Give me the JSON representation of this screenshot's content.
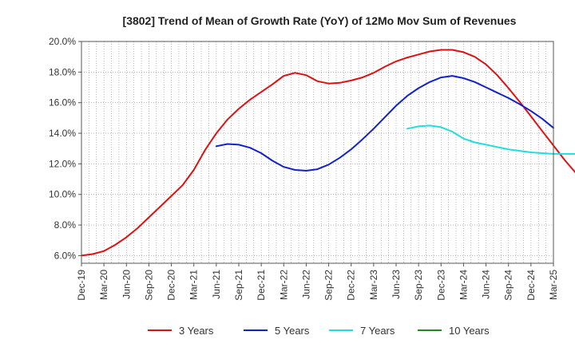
{
  "chart_data": {
    "type": "line",
    "title": "[3802]  Trend of Mean of Growth Rate (YoY) of 12Mo Mov Sum of Revenues",
    "xlabel": "",
    "ylabel": "",
    "ylim": [
      5.5,
      20.0
    ],
    "y_ticks": [
      6.0,
      8.0,
      10.0,
      12.0,
      14.0,
      16.0,
      18.0,
      20.0
    ],
    "y_tick_labels": [
      "6.0%",
      "8.0%",
      "10.0%",
      "12.0%",
      "14.0%",
      "16.0%",
      "18.0%",
      "20.0%"
    ],
    "x_ticks": [
      "Dec-19",
      "Mar-20",
      "Jun-20",
      "Sep-20",
      "Dec-20",
      "Mar-21",
      "Jun-21",
      "Sep-21",
      "Dec-21",
      "Mar-22",
      "Jun-22",
      "Sep-22",
      "Dec-22",
      "Mar-23",
      "Jun-23",
      "Sep-23",
      "Dec-23",
      "Mar-24",
      "Jun-24",
      "Sep-24",
      "Dec-24",
      "Mar-25"
    ],
    "grid": true,
    "legend_position": "bottom",
    "series": [
      {
        "name": "3 Years",
        "color": "#dd1111",
        "start_index": 0,
        "values": [
          6.0,
          6.1,
          6.3,
          6.7,
          7.2,
          7.8,
          8.5,
          9.2,
          9.9,
          10.6,
          11.6,
          12.9,
          14.0,
          14.9,
          15.6,
          16.2,
          16.7,
          17.2,
          17.75,
          17.95,
          17.8,
          17.4,
          17.25,
          17.3,
          17.45,
          17.65,
          17.95,
          18.35,
          18.7,
          18.95,
          19.15,
          19.35,
          19.45,
          19.45,
          19.3,
          19.0,
          18.5,
          17.8,
          16.95,
          16.05,
          15.1,
          14.15,
          13.2,
          12.25,
          11.4,
          10.6
        ]
      },
      {
        "name": "5 Years",
        "color": "#1122cc",
        "start_index": 12,
        "values": [
          13.15,
          13.3,
          13.25,
          13.05,
          12.7,
          12.2,
          11.8,
          11.6,
          11.55,
          11.65,
          11.95,
          12.4,
          12.95,
          13.6,
          14.3,
          15.05,
          15.8,
          16.45,
          16.95,
          17.35,
          17.65,
          17.75,
          17.6,
          17.35,
          17.0,
          16.65,
          16.3,
          15.9,
          15.45,
          14.95,
          14.35
        ]
      },
      {
        "name": "7 Years",
        "color": "#22dddd",
        "start_index": 29,
        "values": [
          14.3,
          14.45,
          14.5,
          14.4,
          14.1,
          13.65,
          13.4,
          13.25,
          13.1,
          12.95,
          12.85,
          12.75,
          12.7,
          12.65,
          12.65,
          12.65
        ]
      },
      {
        "name": "10 Years",
        "color": "#228822",
        "start_index": 0,
        "values": []
      }
    ]
  }
}
